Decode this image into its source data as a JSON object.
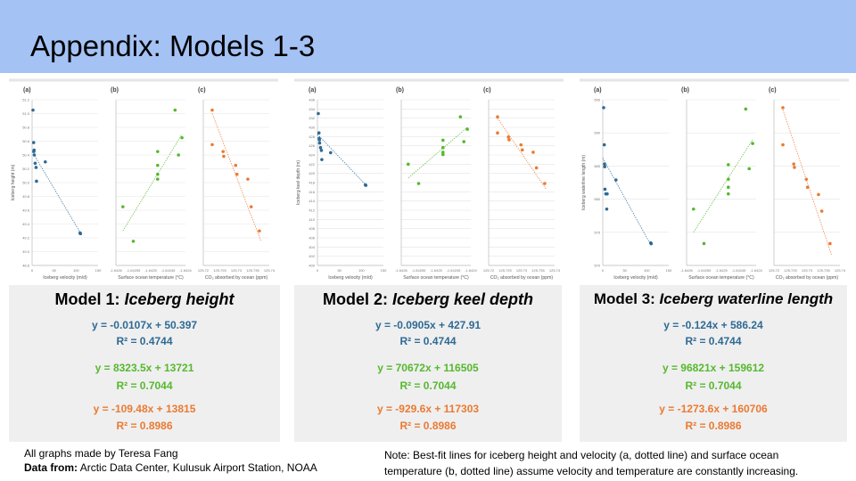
{
  "slide": {
    "title": "Appendix: Models 1-3",
    "credit": "All graphs made by Teresa Fang",
    "data_label": "Data from:",
    "data_source": "Arctic Data Center, Kulusuk Airport Station, NOAA",
    "note_line1": "Note: Best-fit lines for iceberg height and velocity (a, dotted line) and surface ocean",
    "note_line2": "temperature (b, dotted line) assume velocity and temperature are constantly increasing."
  },
  "colors": {
    "header": "#a4c2f4",
    "blue": "#2e6a94",
    "green": "#57b82f",
    "orange": "#ea7a33",
    "card": "#efefef"
  },
  "models": [
    {
      "prefix": "Model 1: ",
      "name": "Iceberg height",
      "eq_a": "y = -0.0107x + 50.397",
      "r2_a": "R² = 0.4744",
      "eq_b": "y = 8323.5x + 13721",
      "r2_b": "R² = 0.7044",
      "eq_c": "y = -109.48x + 13815",
      "r2_c": "R² = 0.8986"
    },
    {
      "prefix": "Model 2: ",
      "name": "Iceberg keel depth",
      "eq_a": "y = -0.0905x + 427.91",
      "r2_a": "R² = 0.4744",
      "eq_b": "y = 70672x + 116505",
      "r2_b": "R² = 0.7044",
      "eq_c": "y = -929.6x + 117303",
      "r2_c": "R² = 0.8986"
    },
    {
      "prefix": "Model 3: ",
      "name": "Iceberg waterline length",
      "eq_a": "y = -0.124x + 586.24",
      "r2_a": "R² = 0.4744",
      "eq_b": "y = 96821x + 159612",
      "r2_b": "R² = 0.7044",
      "eq_c": "y = -1273.6x + 160706",
      "r2_c": "R² = 0.8986"
    }
  ],
  "chart_data": [
    {
      "type": "scatter",
      "title": "Model 1: Iceberg height",
      "subplots": [
        {
          "label": "(a)",
          "xlabel": "Iceberg velocity (m/d)",
          "ylabel": "Iceberg height (m)",
          "xticks": [
            "0",
            "50",
            "100",
            "150"
          ],
          "yticks": [
            "48.8",
            "49.0",
            "49.2",
            "49.4",
            "49.6",
            "49.8",
            "50.0",
            "50.2",
            "50.4",
            "50.6",
            "50.8",
            "51.0",
            "51.2"
          ],
          "color": "#2e6a94",
          "points": [
            [
              2.0,
              51.05
            ],
            [
              3.5,
              50.58
            ],
            [
              4.0,
              50.45
            ],
            [
              4.5,
              50.47
            ],
            [
              5.0,
              50.4
            ],
            [
              7.0,
              50.28
            ],
            [
              9.0,
              50.22
            ],
            [
              10.0,
              50.02
            ],
            [
              30.0,
              50.3
            ],
            [
              109.0,
              49.27
            ],
            [
              110.0,
              49.26
            ]
          ],
          "fit": {
            "from": [
              0,
              50.45
            ],
            "to": [
              110,
              49.27
            ]
          }
        },
        {
          "label": "(b)",
          "xlabel": "Surface ocean temperature (°C)",
          "xticks": [
            "-1.6426",
            "-1.64255",
            "-1.6425",
            "-1.64245",
            "-1.6424"
          ],
          "color": "#57b82f",
          "points": [
            [
              -1.64258,
              49.65
            ],
            [
              -1.64255,
              49.15
            ],
            [
              -1.64248,
              50.45
            ],
            [
              -1.64248,
              50.25
            ],
            [
              -1.64248,
              50.12
            ],
            [
              -1.64248,
              50.05
            ],
            [
              -1.64242,
              50.4
            ],
            [
              -1.64243,
              51.05
            ],
            [
              -1.64241,
              50.65
            ]
          ],
          "fit": {
            "from": [
              -1.64258,
              49.3
            ],
            "to": [
              -1.64241,
              50.7
            ]
          }
        },
        {
          "label": "(c)",
          "xlabel": "CO₂ absorbed by ocean (ppm)",
          "xticks": [
            "125.72",
            "125.725",
            "125.73",
            "125.735",
            "125.74"
          ],
          "color": "#ea7a33",
          "points": [
            [
              125.7227,
              51.05
            ],
            [
              125.7227,
              50.55
            ],
            [
              125.726,
              50.45
            ],
            [
              125.7262,
              50.38
            ],
            [
              125.7298,
              50.25
            ],
            [
              125.7302,
              50.12
            ],
            [
              125.7335,
              50.05
            ],
            [
              125.7345,
              49.65
            ],
            [
              125.737,
              49.3
            ]
          ],
          "fit": {
            "from": [
              125.7227,
              51.0
            ],
            "to": [
              125.7375,
              49.15
            ]
          }
        }
      ]
    },
    {
      "type": "scatter",
      "title": "Model 2: Iceberg keel depth",
      "subplots": [
        {
          "label": "(a)",
          "xlabel": "Iceberg velocity (m/d)",
          "ylabel": "Iceberg keel depth (m)",
          "xticks": [
            "0",
            "50",
            "100",
            "150"
          ],
          "yticks": [
            "400",
            "402",
            "404",
            "406",
            "408",
            "410",
            "412",
            "414",
            "416",
            "418",
            "420",
            "422",
            "424",
            "426",
            "428",
            "430",
            "432",
            "434",
            "436"
          ],
          "color": "#2e6a94",
          "points": [
            [
              2.0,
              433.0
            ],
            [
              3.5,
              428.8
            ],
            [
              4.0,
              427.6
            ],
            [
              4.5,
              427.3
            ],
            [
              5.0,
              426.6
            ],
            [
              7.0,
              425.6
            ],
            [
              9.0,
              425.0
            ],
            [
              10.0,
              423.0
            ],
            [
              30.0,
              424.5
            ],
            [
              109.0,
              417.5
            ],
            [
              110.0,
              417.4
            ]
          ],
          "fit": {
            "from": [
              0,
              428.5
            ],
            "to": [
              110,
              417.5
            ]
          }
        },
        {
          "label": "(b)",
          "xlabel": "Surface ocean temperature (°C)",
          "xticks": [
            "-1.6426",
            "-1.64255",
            "-1.6425",
            "-1.64245",
            "-1.6424"
          ],
          "color": "#57b82f",
          "points": [
            [
              -1.64258,
              422.0
            ],
            [
              -1.64255,
              417.8
            ],
            [
              -1.64248,
              427.2
            ],
            [
              -1.64248,
              425.6
            ],
            [
              -1.64248,
              424.6
            ],
            [
              -1.64248,
              424.1
            ],
            [
              -1.64242,
              426.9
            ],
            [
              -1.64243,
              432.3
            ],
            [
              -1.64241,
              429.6
            ]
          ],
          "fit": {
            "from": [
              -1.64258,
              419.0
            ],
            "to": [
              -1.64241,
              430.0
            ]
          }
        },
        {
          "label": "(c)",
          "xlabel": "CO₂ absorbed by ocean (ppm)",
          "xticks": [
            "125.72",
            "125.725",
            "125.73",
            "125.735",
            "125.74"
          ],
          "color": "#ea7a33",
          "points": [
            [
              125.7227,
              432.3
            ],
            [
              125.7227,
              428.8
            ],
            [
              125.726,
              427.9
            ],
            [
              125.7262,
              427.3
            ],
            [
              125.7298,
              426.2
            ],
            [
              125.7302,
              425.1
            ],
            [
              125.7335,
              424.6
            ],
            [
              125.7345,
              421.2
            ],
            [
              125.737,
              417.8
            ]
          ],
          "fit": {
            "from": [
              125.7227,
              432.0
            ],
            "to": [
              125.7375,
              416.5
            ]
          }
        }
      ]
    },
    {
      "type": "scatter",
      "title": "Model 3: Iceberg waterline length",
      "subplots": [
        {
          "label": "(a)",
          "xlabel": "Iceberg velocity (m/d)",
          "ylabel": "Iceberg waterline length (m)",
          "xticks": [
            "0",
            "50",
            "100",
            "150"
          ],
          "yticks": [
            "570",
            "575",
            "580",
            "585",
            "590",
            "595"
          ],
          "color": "#2e6a94",
          "points": [
            [
              2.0,
              593.8
            ],
            [
              3.5,
              588.2
            ],
            [
              4.0,
              585.3
            ],
            [
              4.5,
              584.9
            ],
            [
              5.0,
              581.5
            ],
            [
              7.0,
              580.8
            ],
            [
              9.0,
              578.5
            ],
            [
              10.0,
              580.8
            ],
            [
              30.0,
              582.9
            ],
            [
              109.0,
              573.4
            ],
            [
              110.0,
              573.3
            ]
          ],
          "fit": {
            "from": [
              0,
              586.2
            ],
            "to": [
              110,
              573.0
            ]
          }
        },
        {
          "label": "(b)",
          "xlabel": "Surface ocean temperature (°C)",
          "xticks": [
            "-1.6426",
            "-1.64255",
            "-1.6425",
            "-1.64245",
            "-1.6424"
          ],
          "color": "#57b82f",
          "points": [
            [
              -1.64258,
              578.5
            ],
            [
              -1.64255,
              573.3
            ],
            [
              -1.64248,
              585.2
            ],
            [
              -1.64248,
              583.0
            ],
            [
              -1.64248,
              581.8
            ],
            [
              -1.64248,
              580.8
            ],
            [
              -1.64242,
              584.6
            ],
            [
              -1.64243,
              593.6
            ],
            [
              -1.64241,
              588.4
            ]
          ],
          "fit": {
            "from": [
              -1.64258,
              575.0
            ],
            "to": [
              -1.64241,
              589.0
            ]
          }
        },
        {
          "label": "(c)",
          "xlabel": "CO₂ absorbed by ocean (ppm)",
          "xticks": [
            "125.72",
            "125.725",
            "125.73",
            "125.735",
            "125.74"
          ],
          "color": "#ea7a33",
          "points": [
            [
              125.7227,
              593.8
            ],
            [
              125.7227,
              588.2
            ],
            [
              125.726,
              585.3
            ],
            [
              125.7262,
              584.8
            ],
            [
              125.7298,
              583.0
            ],
            [
              125.7302,
              581.8
            ],
            [
              125.7335,
              580.7
            ],
            [
              125.7345,
              578.2
            ],
            [
              125.737,
              573.3
            ]
          ],
          "fit": {
            "from": [
              125.7227,
              593.5
            ],
            "to": [
              125.7375,
              571.5
            ]
          }
        }
      ]
    }
  ]
}
